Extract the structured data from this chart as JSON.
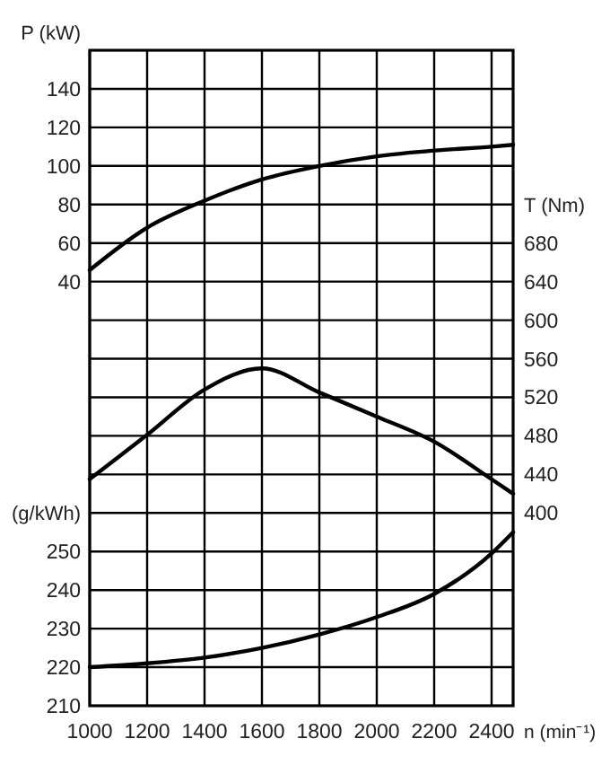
{
  "chart_data": {
    "type": "line",
    "xlabel": "n (min⁻¹)",
    "ylabel": "P (kW)",
    "y2label": "T (Nm)",
    "y3label": "(g/kWh)",
    "x": [
      1000,
      1200,
      1400,
      1600,
      1800,
      2000,
      2200,
      2400,
      2475
    ],
    "xlim": [
      1000,
      2475
    ],
    "xticks": [
      1000,
      1200,
      1400,
      1600,
      1800,
      2000,
      2200,
      2400
    ],
    "ylim": [
      -180,
      160
    ],
    "yticks": [
      {
        "value": -160,
        "label": null
      },
      {
        "value": -140,
        "label": null
      },
      {
        "value": -120,
        "label": null
      },
      {
        "value": -100,
        "label": null
      },
      {
        "value": -80,
        "label": null
      },
      {
        "value": -60,
        "label": null
      },
      {
        "value": -40,
        "label": null
      },
      {
        "value": -20,
        "label": null
      },
      {
        "value": 0,
        "label": null
      },
      {
        "value": 20,
        "label": null
      },
      40,
      60,
      80,
      100,
      120,
      140
    ],
    "y2lim": [
      200,
      880
    ],
    "y2ticks": [
      400,
      440,
      480,
      520,
      560,
      600,
      640,
      680
    ],
    "y3lim": [
      210,
      380
    ],
    "y3ticks": [
      210,
      220,
      230,
      240,
      250
    ],
    "grid": true,
    "line_style": "solid",
    "marker": "none",
    "series": [
      {
        "color": "#000000",
        "values": [
          46,
          68,
          82,
          93,
          100,
          105,
          108,
          110,
          111
        ]
      },
      {
        "color": "#000000",
        "axis": "y2",
        "values": [
          435,
          481,
          528,
          550,
          525,
          500,
          474,
          435,
          420
        ]
      },
      {
        "color": "#000000",
        "axis": "y3",
        "values": [
          220,
          221,
          222.5,
          225,
          228.5,
          233,
          239,
          249.5,
          255
        ]
      }
    ]
  }
}
